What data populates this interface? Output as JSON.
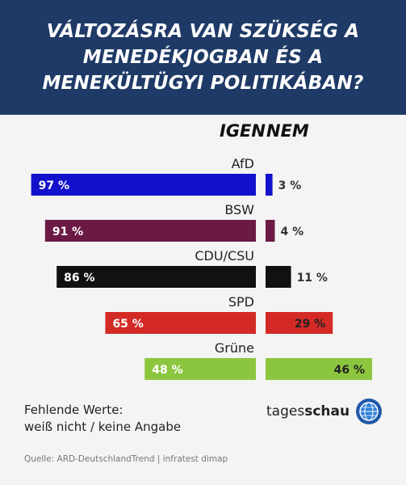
{
  "header": {
    "title": "VÁLTOZÁSRA VAN SZÜKSÉG A MENEDÉKJOGBAN ÉS A MENEKÜLTÜGYI POLITIKÁBAN?"
  },
  "columns": {
    "yes": "IGEN",
    "no": "NEM"
  },
  "chart_data": {
    "type": "bar",
    "title": "VÁLTOZÁSRA VAN SZÜKSÉG A MENEDÉKJOGBAN ÉS A MENEKÜLTÜGYI POLITIKÁBAN?",
    "categories": [
      "AfD",
      "BSW",
      "CDU/CSU",
      "SPD",
      "Grüne"
    ],
    "series": [
      {
        "name": "IGEN",
        "values": [
          97,
          91,
          86,
          65,
          48
        ]
      },
      {
        "name": "NEM",
        "values": [
          3,
          4,
          11,
          29,
          46
        ]
      }
    ],
    "value_labels": {
      "IGEN": [
        "97 %",
        "91 %",
        "86 %",
        "65 %",
        "48 %"
      ],
      "NEM": [
        "3 %",
        "4 %",
        "11 %",
        "29 %",
        "46 %"
      ]
    },
    "colors": [
      "#1212cc",
      "#6b1a45",
      "#111111",
      "#d42a26",
      "#8cc63f"
    ],
    "unit": "%",
    "ylim": [
      0,
      100
    ],
    "grid": false,
    "legend": "none"
  },
  "footer": {
    "note_line1": "Fehlende Werte:",
    "note_line2": "weiß nicht / keine Angabe",
    "source": "Quelle: ARD-DeutschlandTrend | infratest dimap",
    "brand_light": "tages",
    "brand_bold": "schau"
  }
}
